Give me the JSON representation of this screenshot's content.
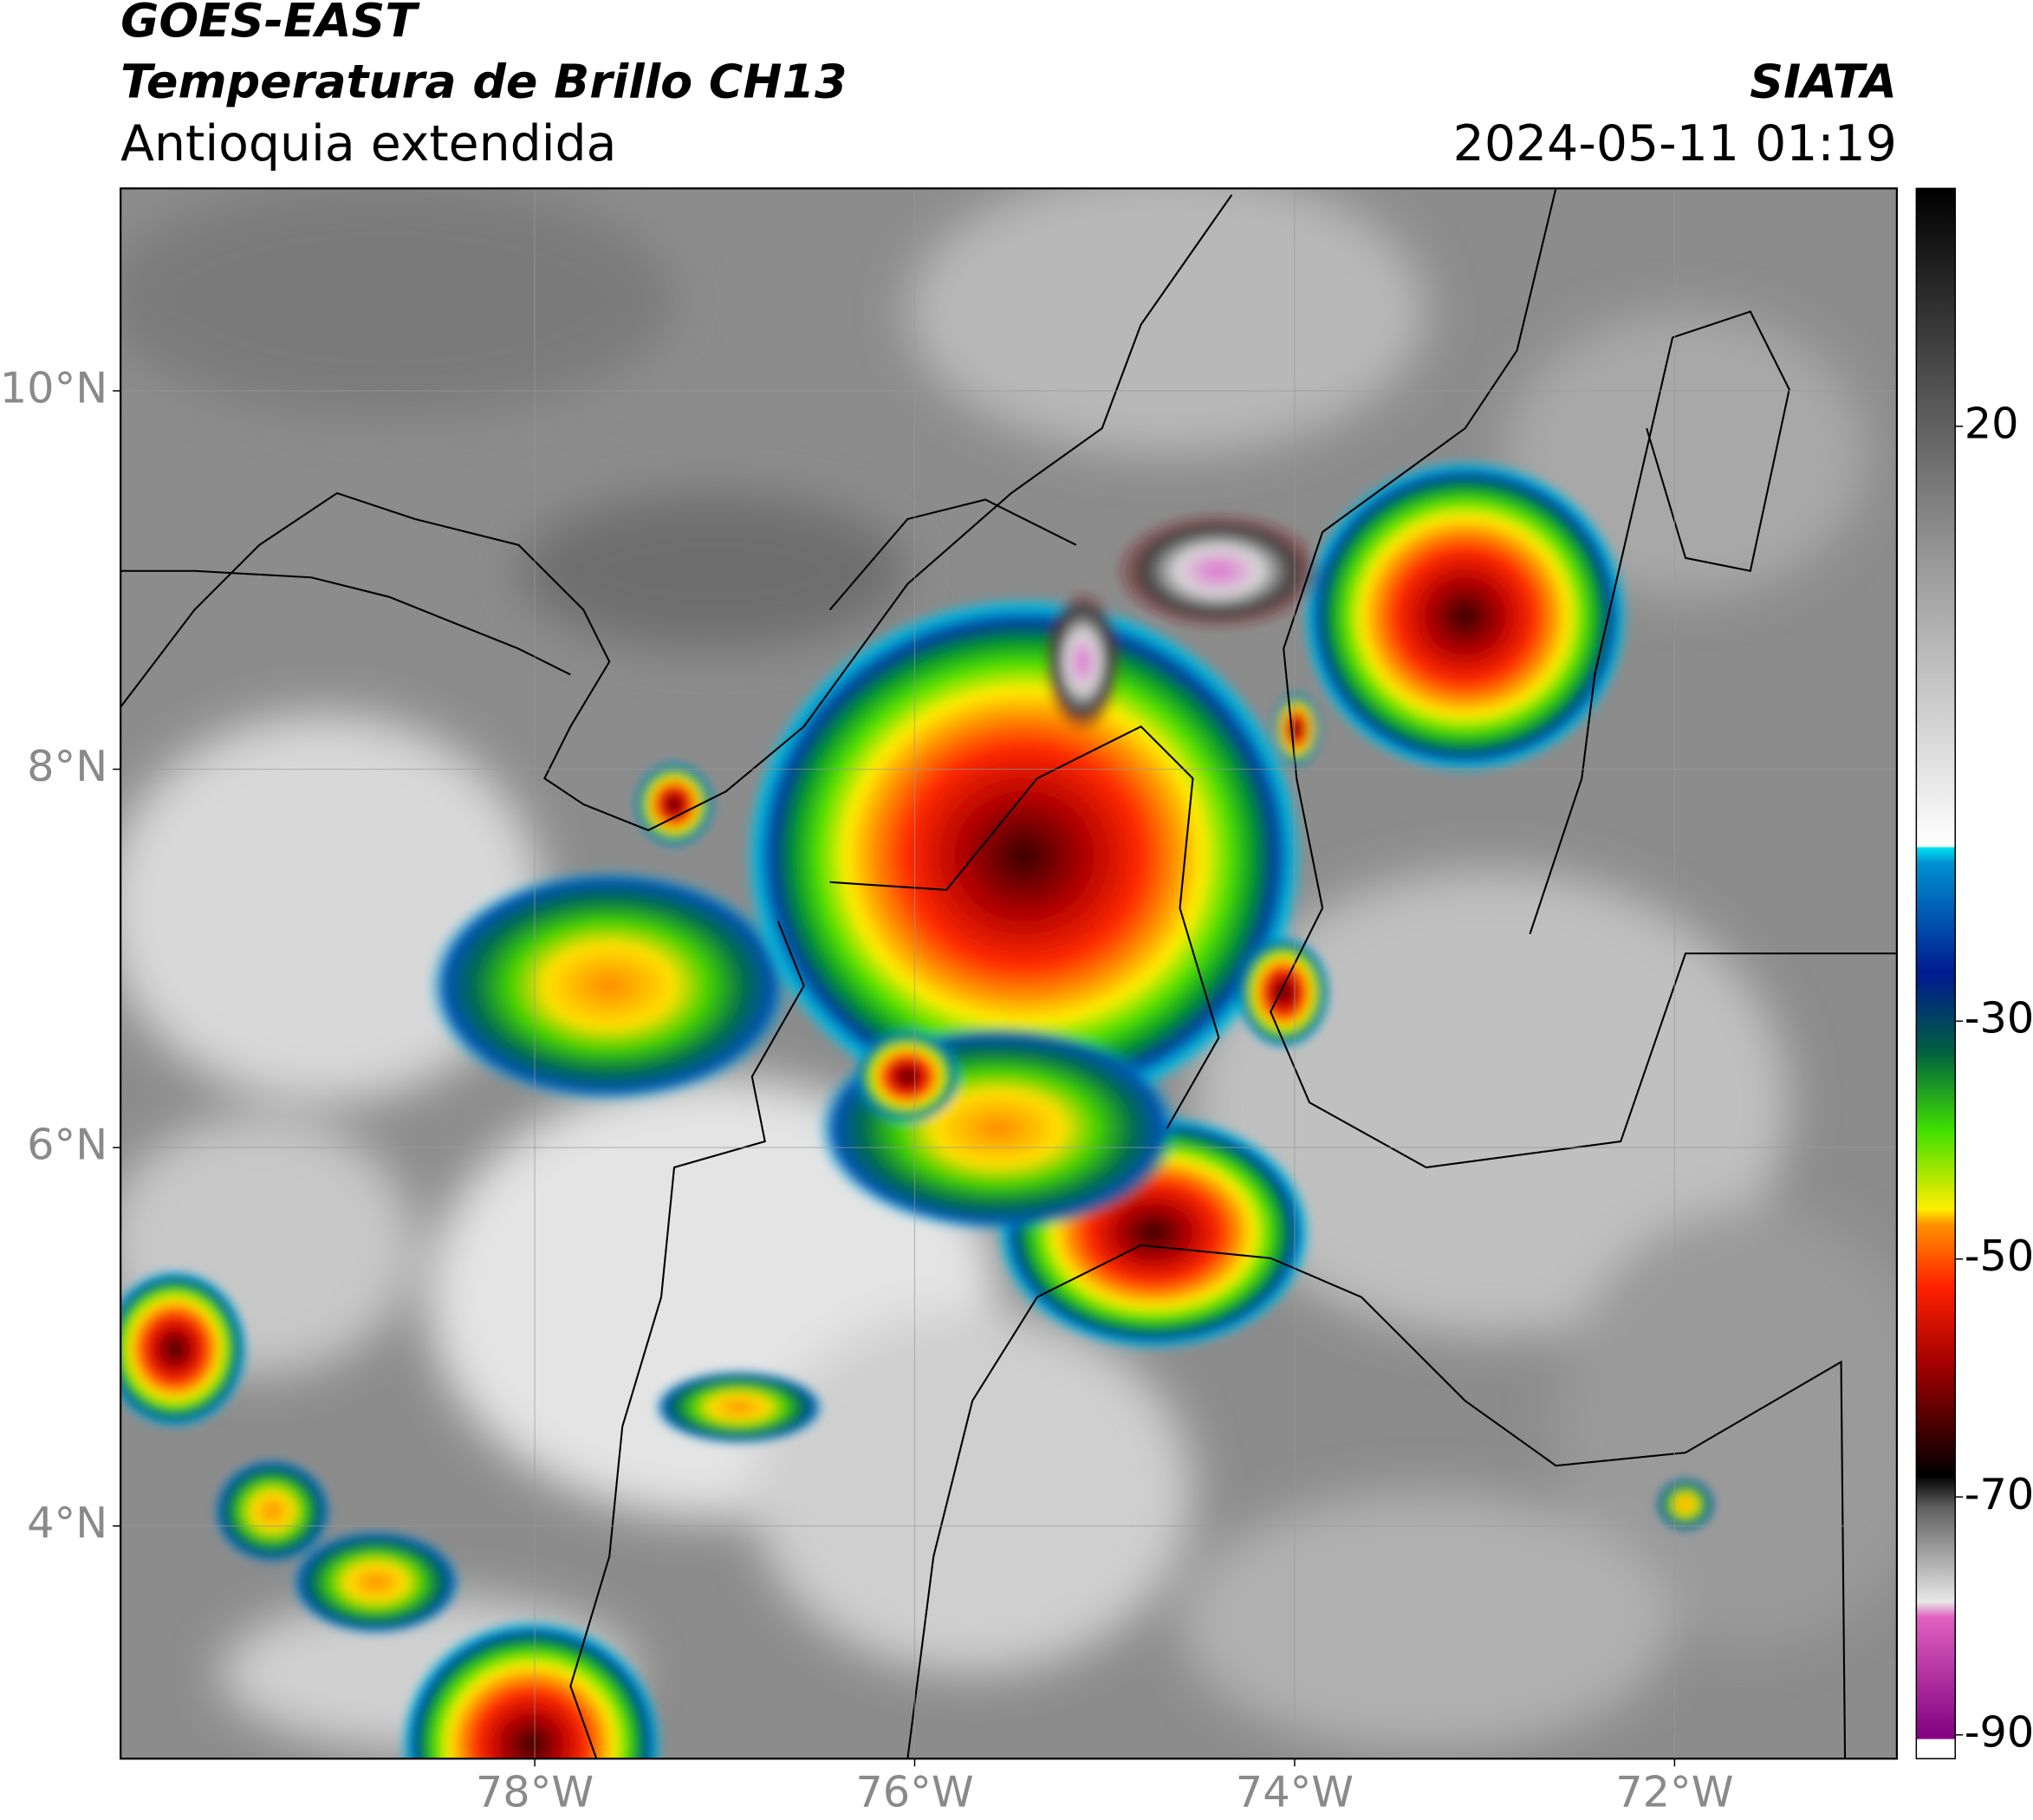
{
  "header": {
    "title": "GOES-EAST",
    "subtitle": "Temperatura de Brillo CH13",
    "region": "Antioquia extendida",
    "source": "SIATA",
    "datetime": "2024-05-11 01:19"
  },
  "map": {
    "xlim": [
      -80.18,
      -70.83
    ],
    "ylim": [
      2.77,
      11.07
    ],
    "xticks": [
      {
        "value": -78,
        "label": "78°W"
      },
      {
        "value": -76,
        "label": "76°W"
      },
      {
        "value": -74,
        "label": "74°W"
      },
      {
        "value": -72,
        "label": "72°W"
      }
    ],
    "yticks": [
      {
        "value": 10,
        "label": "10°N"
      },
      {
        "value": 8,
        "label": "8°N"
      },
      {
        "value": 6,
        "label": "6°N"
      },
      {
        "value": 4,
        "label": "4°N"
      }
    ]
  },
  "colorbar": {
    "lim": [
      -92,
      40
    ],
    "ticks": [
      20,
      -30,
      -50,
      -70,
      -90
    ]
  }
}
